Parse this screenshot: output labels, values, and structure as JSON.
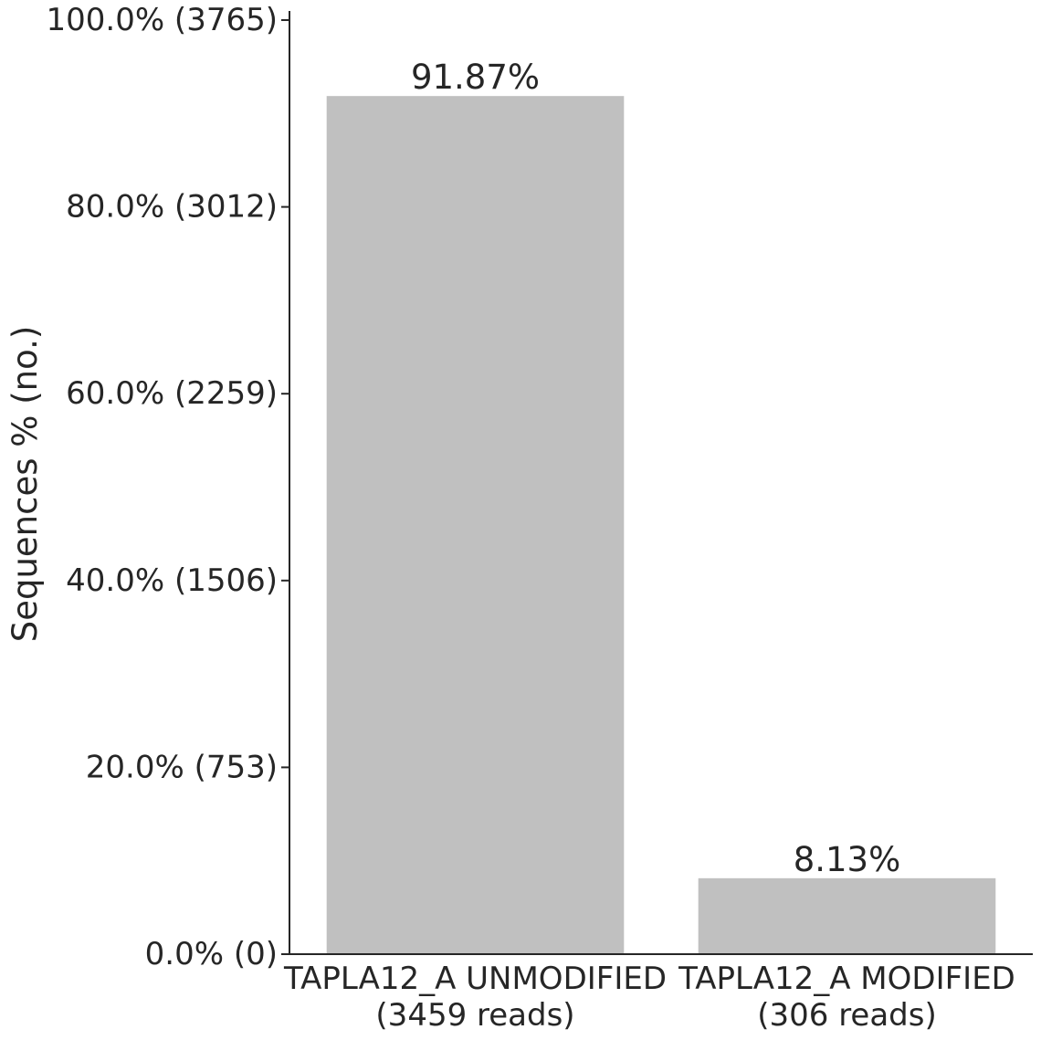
{
  "chart_data": {
    "type": "bar",
    "ylabel": "Sequences % (no.)",
    "ylim": [
      0,
      100
    ],
    "y_ticks": [
      {
        "value": 0,
        "label": "0.0% (0)"
      },
      {
        "value": 20,
        "label": "20.0% (753)"
      },
      {
        "value": 40,
        "label": "40.0% (1506)"
      },
      {
        "value": 60,
        "label": "60.0% (2259)"
      },
      {
        "value": 80,
        "label": "80.0% (3012)"
      },
      {
        "value": 100,
        "label": "100.0% (3765)"
      }
    ],
    "categories": [
      {
        "line1": "TAPLA12_A UNMODIFIED",
        "line2": "(3459 reads)"
      },
      {
        "line1": "TAPLA12_A MODIFIED",
        "line2": "(306 reads)"
      }
    ],
    "values": [
      91.87,
      8.13
    ],
    "value_labels": [
      "91.87%",
      "8.13%"
    ],
    "bar_color": "#c0c0c0",
    "grid": false,
    "legend": "none"
  }
}
